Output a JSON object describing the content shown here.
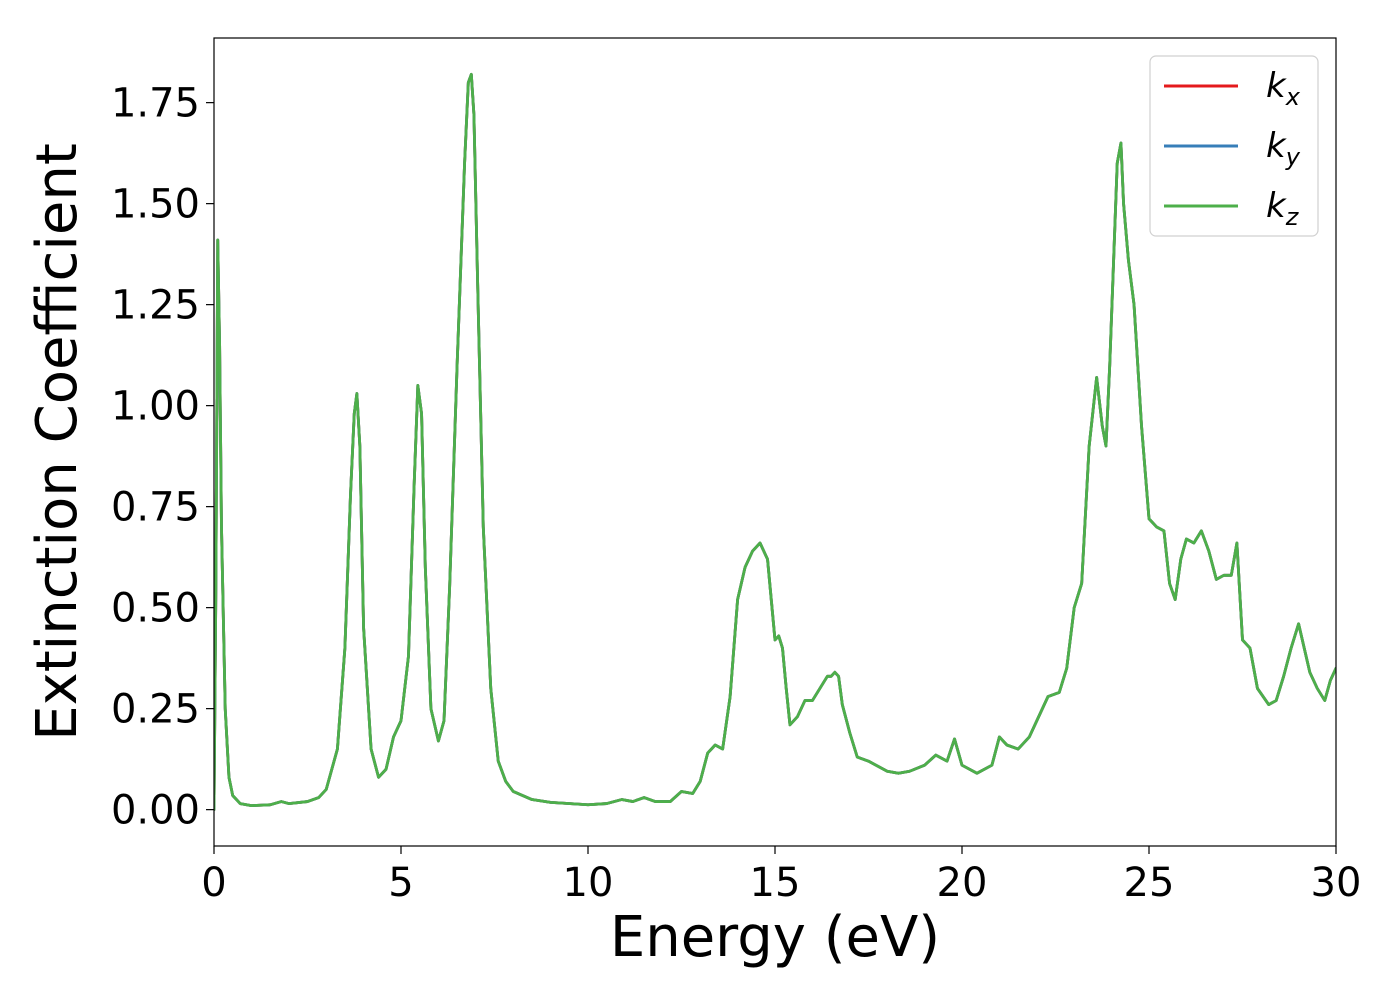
{
  "chart_data": {
    "type": "line",
    "title": "",
    "xlabel": "Energy (eV)",
    "ylabel": "Extinction Coefficient",
    "xlim": [
      0,
      30
    ],
    "ylim": [
      -0.09,
      1.91
    ],
    "xticks": [
      0,
      5,
      10,
      15,
      20,
      25,
      30
    ],
    "yticks": [
      0.0,
      0.25,
      0.5,
      0.75,
      1.0,
      1.25,
      1.5,
      1.75
    ],
    "xtick_labels": [
      "0",
      "5",
      "10",
      "15",
      "20",
      "25",
      "30"
    ],
    "ytick_labels": [
      "0.00",
      "0.25",
      "0.50",
      "0.75",
      "1.00",
      "1.25",
      "1.50",
      "1.75"
    ],
    "grid": false,
    "legend_position": "top-right",
    "series": [
      {
        "name": "k",
        "subscript": "x",
        "color": "#e41a1c",
        "ref": "same_as_kz"
      },
      {
        "name": "k",
        "subscript": "y",
        "color": "#377eb8",
        "ref": "same_as_kz"
      },
      {
        "name": "k",
        "subscript": "z",
        "color": "#4daf4a"
      }
    ],
    "x": [
      0.0,
      0.05,
      0.1,
      0.15,
      0.2,
      0.3,
      0.4,
      0.5,
      0.7,
      1.0,
      1.5,
      1.8,
      2.0,
      2.5,
      2.8,
      3.0,
      3.3,
      3.5,
      3.65,
      3.75,
      3.82,
      3.9,
      4.0,
      4.2,
      4.4,
      4.6,
      4.8,
      5.0,
      5.2,
      5.35,
      5.45,
      5.55,
      5.65,
      5.8,
      6.0,
      6.15,
      6.3,
      6.5,
      6.7,
      6.8,
      6.88,
      6.95,
      7.05,
      7.2,
      7.4,
      7.6,
      7.8,
      8.0,
      8.5,
      9.0,
      10.0,
      10.5,
      10.9,
      11.2,
      11.5,
      11.8,
      12.2,
      12.5,
      12.8,
      13.0,
      13.2,
      13.4,
      13.6,
      13.8,
      14.0,
      14.2,
      14.4,
      14.6,
      14.8,
      14.9,
      15.0,
      15.1,
      15.2,
      15.3,
      15.4,
      15.6,
      15.8,
      16.0,
      16.2,
      16.4,
      16.5,
      16.6,
      16.7,
      16.8,
      17.0,
      17.2,
      17.5,
      18.0,
      18.3,
      18.6,
      19.0,
      19.3,
      19.6,
      19.8,
      20.0,
      20.4,
      20.8,
      21.0,
      21.2,
      21.5,
      21.8,
      22.0,
      22.3,
      22.6,
      22.8,
      23.0,
      23.2,
      23.4,
      23.6,
      23.75,
      23.85,
      23.95,
      24.05,
      24.15,
      24.25,
      24.32,
      24.45,
      24.6,
      24.8,
      25.0,
      25.2,
      25.4,
      25.55,
      25.7,
      25.85,
      26.0,
      26.2,
      26.4,
      26.6,
      26.8,
      27.0,
      27.2,
      27.35,
      27.5,
      27.7,
      27.9,
      28.2,
      28.4,
      28.6,
      28.8,
      29.0,
      29.15,
      29.3,
      29.5,
      29.7,
      29.85,
      30.0
    ],
    "y": [
      0.0,
      0.55,
      1.41,
      1.15,
      0.7,
      0.25,
      0.08,
      0.035,
      0.015,
      0.01,
      0.012,
      0.02,
      0.015,
      0.02,
      0.03,
      0.05,
      0.15,
      0.4,
      0.78,
      0.98,
      1.03,
      0.9,
      0.45,
      0.15,
      0.08,
      0.1,
      0.18,
      0.22,
      0.38,
      0.8,
      1.05,
      0.98,
      0.6,
      0.25,
      0.17,
      0.22,
      0.55,
      1.1,
      1.6,
      1.8,
      1.82,
      1.72,
      1.3,
      0.7,
      0.3,
      0.12,
      0.07,
      0.045,
      0.025,
      0.018,
      0.012,
      0.015,
      0.025,
      0.02,
      0.03,
      0.02,
      0.02,
      0.045,
      0.04,
      0.07,
      0.14,
      0.16,
      0.15,
      0.28,
      0.52,
      0.6,
      0.64,
      0.66,
      0.62,
      0.52,
      0.42,
      0.43,
      0.4,
      0.3,
      0.21,
      0.23,
      0.27,
      0.27,
      0.3,
      0.33,
      0.33,
      0.34,
      0.33,
      0.26,
      0.19,
      0.13,
      0.12,
      0.095,
      0.09,
      0.095,
      0.11,
      0.135,
      0.12,
      0.175,
      0.11,
      0.09,
      0.11,
      0.18,
      0.16,
      0.15,
      0.18,
      0.22,
      0.28,
      0.29,
      0.35,
      0.5,
      0.56,
      0.9,
      1.07,
      0.95,
      0.9,
      1.1,
      1.35,
      1.6,
      1.65,
      1.5,
      1.36,
      1.25,
      0.95,
      0.72,
      0.7,
      0.69,
      0.56,
      0.52,
      0.62,
      0.67,
      0.66,
      0.69,
      0.64,
      0.57,
      0.58,
      0.58,
      0.66,
      0.42,
      0.4,
      0.3,
      0.26,
      0.27,
      0.33,
      0.4,
      0.46,
      0.4,
      0.34,
      0.3,
      0.27,
      0.32,
      0.35
    ]
  }
}
